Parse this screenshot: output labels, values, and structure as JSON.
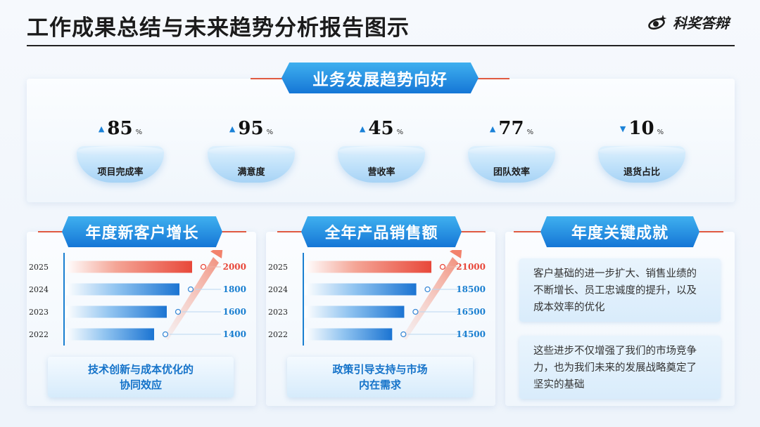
{
  "header": {
    "title": "工作成果总结与未来趋势分析报告图示",
    "brand": "科奖答辩"
  },
  "section_trend": {
    "title": "业务发展趋势向好",
    "metrics": [
      {
        "value": "85",
        "unit": "%",
        "direction": "up",
        "label": "项目完成率"
      },
      {
        "value": "95",
        "unit": "%",
        "direction": "up",
        "label": "满意度"
      },
      {
        "value": "45",
        "unit": "%",
        "direction": "up",
        "label": "营收率"
      },
      {
        "value": "77",
        "unit": "%",
        "direction": "up",
        "label": "团队效率"
      },
      {
        "value": "10",
        "unit": "%",
        "direction": "down",
        "label": "退货占比"
      }
    ]
  },
  "chart_data": [
    {
      "type": "bar",
      "title": "年度新客户增长",
      "categories": [
        "2025",
        "2024",
        "2023",
        "2022"
      ],
      "values": [
        2000,
        1800,
        1600,
        1400
      ],
      "orientation": "horizontal",
      "note": [
        "技术创新与成本优化的",
        "协同效应"
      ]
    },
    {
      "type": "bar",
      "title": "全年产品销售额",
      "categories": [
        "2025",
        "2024",
        "2023",
        "2022"
      ],
      "values": [
        21000,
        18500,
        16500,
        14500
      ],
      "orientation": "horizontal",
      "note": [
        "政策引导支持与市场",
        "内在需求"
      ]
    }
  ],
  "section_achievements": {
    "title": "年度关键成就",
    "items": [
      "客户基础的进一步扩大、销售业绩的不断增长、员工忠诚度的提升，以及成本效率的优化",
      "这些进步不仅增强了我们的市场竞争力，也为我们未来的发展战略奠定了坚实的基础"
    ]
  },
  "colors": {
    "accent": "#1576d6",
    "highlight": "#e8483a",
    "ribbon": "#e05a40"
  }
}
